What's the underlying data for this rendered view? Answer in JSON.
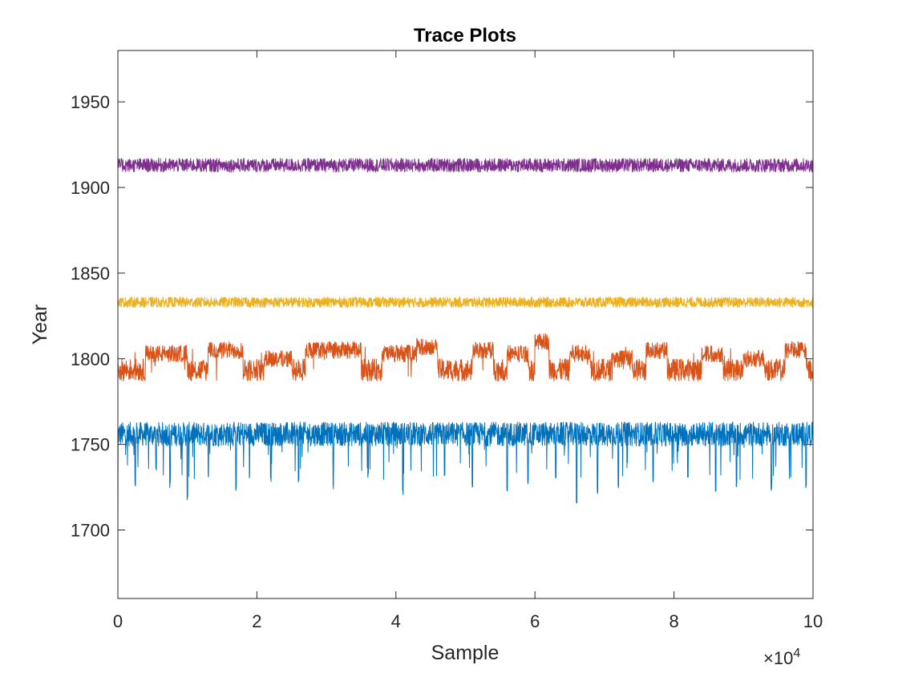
{
  "chart_data": {
    "type": "line",
    "title": "Trace Plots",
    "xlabel": "Sample",
    "ylabel": "Year",
    "x_exponent_label": "×10",
    "x_exponent_power": "4",
    "xlim": [
      0,
      10
    ],
    "ylim": [
      1660,
      1980
    ],
    "x_ticks": [
      "0",
      "2",
      "4",
      "6",
      "8",
      "10"
    ],
    "y_ticks": [
      "1700",
      "1750",
      "1800",
      "1850",
      "1900",
      "1950"
    ],
    "grid": false,
    "series": [
      {
        "color": "#0072BD",
        "base": 1757,
        "lo": 1749,
        "hi": 1763,
        "start": 1700,
        "dips": [
          [
            0.25,
            1725
          ],
          [
            0.55,
            1733
          ],
          [
            0.75,
            1724
          ],
          [
            1.0,
            1717
          ],
          [
            1.3,
            1730
          ],
          [
            1.7,
            1722
          ],
          [
            2.2,
            1728
          ],
          [
            2.6,
            1726
          ],
          [
            3.1,
            1724
          ],
          [
            3.6,
            1730
          ],
          [
            4.1,
            1720
          ],
          [
            4.7,
            1730
          ],
          [
            5.1,
            1725
          ],
          [
            5.6,
            1722
          ],
          [
            5.9,
            1726
          ],
          [
            6.3,
            1730
          ],
          [
            6.6,
            1715
          ],
          [
            6.9,
            1720
          ],
          [
            7.2,
            1724
          ],
          [
            7.7,
            1727
          ],
          [
            8.2,
            1730
          ],
          [
            8.6,
            1720
          ],
          [
            8.9,
            1725
          ],
          [
            9.4,
            1723
          ],
          [
            9.9,
            1724
          ]
        ]
      },
      {
        "color": "#D95319",
        "base": 1793,
        "lo": 1787,
        "hi": 1800,
        "start": 1807,
        "regimes": [
          [
            0.4,
            1.0,
            1803
          ],
          [
            1.3,
            1.8,
            1805
          ],
          [
            2.1,
            2.5,
            1800
          ],
          [
            2.7,
            3.5,
            1805
          ],
          [
            3.8,
            4.3,
            1803
          ],
          [
            4.3,
            4.6,
            1807
          ],
          [
            5.1,
            5.4,
            1805
          ],
          [
            5.6,
            5.9,
            1803
          ],
          [
            6.0,
            6.2,
            1810
          ],
          [
            6.5,
            6.8,
            1803
          ],
          [
            7.1,
            7.4,
            1800
          ],
          [
            7.6,
            7.9,
            1805
          ],
          [
            8.4,
            8.7,
            1803
          ],
          [
            9.0,
            9.3,
            1800
          ],
          [
            9.6,
            9.9,
            1805
          ]
        ]
      },
      {
        "color": "#EDB120",
        "base": 1834,
        "lo": 1830,
        "hi": 1836
      },
      {
        "color": "#7E2F8E",
        "base": 1911,
        "lo": 1909,
        "hi": 1917
      }
    ]
  }
}
